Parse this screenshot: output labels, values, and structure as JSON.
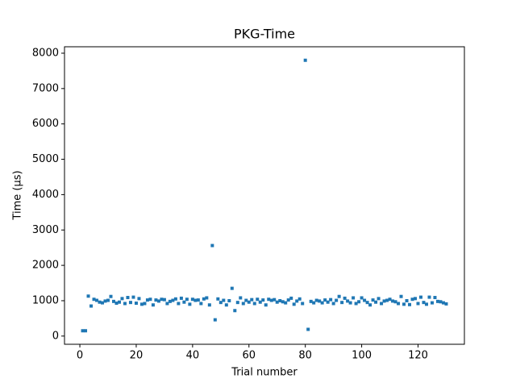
{
  "chart_data": {
    "type": "scatter",
    "title": "PKG-Time",
    "xlabel": "Trial number",
    "ylabel": "Time (µs)",
    "color": "#1f77b4",
    "x": [
      1,
      2,
      3,
      4,
      5,
      6,
      7,
      8,
      9,
      10,
      11,
      12,
      13,
      14,
      15,
      16,
      17,
      18,
      19,
      20,
      21,
      22,
      23,
      24,
      25,
      26,
      27,
      28,
      29,
      30,
      31,
      32,
      33,
      34,
      35,
      36,
      37,
      38,
      39,
      40,
      41,
      42,
      43,
      44,
      45,
      46,
      47,
      48,
      49,
      50,
      51,
      52,
      53,
      54,
      55,
      56,
      57,
      58,
      59,
      60,
      61,
      62,
      63,
      64,
      65,
      66,
      67,
      68,
      69,
      70,
      71,
      72,
      73,
      74,
      75,
      76,
      77,
      78,
      79,
      80,
      81,
      82,
      83,
      84,
      85,
      86,
      87,
      88,
      89,
      90,
      91,
      92,
      93,
      94,
      95,
      96,
      97,
      98,
      99,
      100,
      101,
      102,
      103,
      104,
      105,
      106,
      107,
      108,
      109,
      110,
      111,
      112,
      113,
      114,
      115,
      116,
      117,
      118,
      119,
      120,
      121,
      122,
      123,
      124,
      125,
      126,
      127,
      128,
      129,
      130
    ],
    "values": [
      150,
      150,
      1130,
      850,
      1040,
      1010,
      960,
      940,
      990,
      1010,
      1120,
      980,
      930,
      960,
      1060,
      920,
      1090,
      950,
      1100,
      930,
      1060,
      900,
      920,
      1020,
      1040,
      880,
      1020,
      990,
      1040,
      1030,
      920,
      980,
      1010,
      1050,
      920,
      1070,
      960,
      1040,
      900,
      1040,
      1010,
      1020,
      920,
      1050,
      1080,
      880,
      2560,
      460,
      1050,
      950,
      1010,
      880,
      1000,
      1350,
      720,
      950,
      1080,
      920,
      1010,
      960,
      1030,
      920,
      1040,
      960,
      1020,
      880,
      1040,
      1010,
      1030,
      960,
      1000,
      970,
      940,
      1020,
      1070,
      900,
      990,
      1050,
      920,
      7800,
      190,
      980,
      940,
      1010,
      990,
      940,
      1020,
      960,
      1030,
      920,
      1010,
      1120,
      950,
      1070,
      990,
      940,
      1080,
      920,
      970,
      1080,
      1010,
      950,
      880,
      1020,
      960,
      1060,
      920,
      990,
      1010,
      1040,
      990,
      970,
      920,
      1120,
      900,
      1000,
      890,
      1040,
      1060,
      920,
      1100,
      950,
      900,
      1100,
      940,
      1090,
      980,
      970,
      940,
      910
    ],
    "xlim": [
      -5.45,
      136.45
    ],
    "ylim": [
      -232,
      8182
    ],
    "xticks": [
      0,
      20,
      40,
      60,
      80,
      100,
      120
    ],
    "yticks": [
      0,
      1000,
      2000,
      3000,
      4000,
      5000,
      6000,
      7000,
      8000
    ]
  }
}
